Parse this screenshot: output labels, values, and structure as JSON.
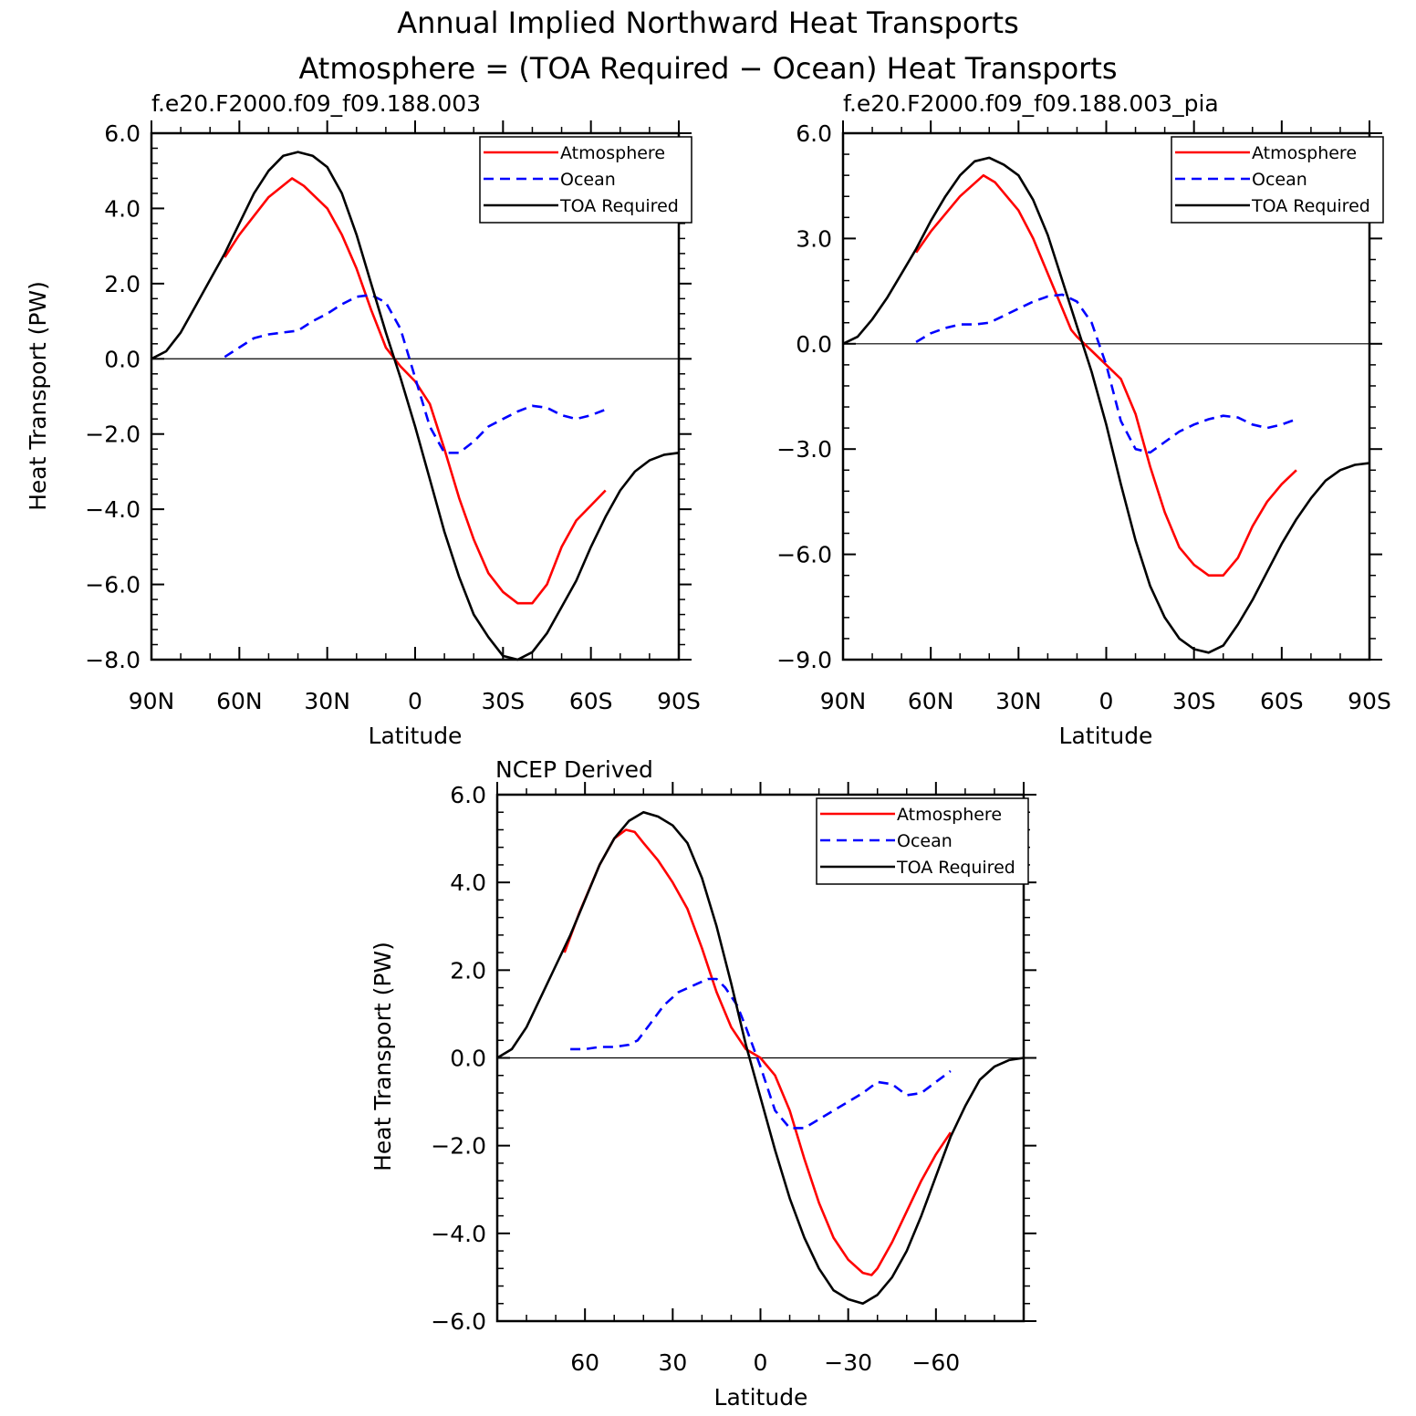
{
  "figure": {
    "title_line1": "Annual Implied Northward Heat Transports",
    "title_line2": "Atmosphere = (TOA Required − Ocean) Heat Transports"
  },
  "colors": {
    "atmosphere": "#ff0000",
    "ocean": "#0000ff",
    "toa": "#000000"
  },
  "chart_data": [
    {
      "type": "line",
      "title": "f.e20.F2000.f09_f09.188.003",
      "xlabel": "Latitude",
      "ylabel": "Heat Transport (PW)",
      "xlim": [
        90,
        -90
      ],
      "ylim": [
        -8,
        6
      ],
      "x_ticks": [
        90,
        60,
        30,
        0,
        -30,
        -60,
        -90
      ],
      "x_tick_labels": [
        "90N",
        "60N",
        "30N",
        "0",
        "30S",
        "60S",
        "90S"
      ],
      "y_ticks": [
        6,
        4,
        2,
        0,
        -2,
        -4,
        -6,
        -8
      ],
      "y_tick_labels": [
        "6.0",
        "4.0",
        "2.0",
        "0.0",
        "−2.0",
        "−4.0",
        "−6.0",
        "−8.0"
      ],
      "legend": "top-right",
      "series": [
        {
          "name": "Atmosphere",
          "color": "#ff0000",
          "dash": "solid",
          "x": [
            65,
            60,
            50,
            42,
            38,
            30,
            25,
            20,
            15,
            12,
            10,
            5,
            0,
            -5,
            -10,
            -15,
            -20,
            -25,
            -30,
            -35,
            -40,
            -45,
            -50,
            -55,
            -60,
            -65
          ],
          "y": [
            2.7,
            3.3,
            4.3,
            4.8,
            4.6,
            4.0,
            3.3,
            2.4,
            1.3,
            0.7,
            0.3,
            -0.2,
            -0.6,
            -1.2,
            -2.4,
            -3.7,
            -4.8,
            -5.7,
            -6.2,
            -6.5,
            -6.5,
            -6.0,
            -5.0,
            -4.3,
            -3.9,
            -3.5
          ]
        },
        {
          "name": "Ocean",
          "color": "#0000ff",
          "dash": "dashed",
          "x": [
            65,
            60,
            55,
            50,
            45,
            40,
            35,
            30,
            25,
            20,
            15,
            10,
            5,
            0,
            -5,
            -10,
            -15,
            -20,
            -25,
            -30,
            -35,
            -40,
            -45,
            -50,
            -55,
            -60,
            -65
          ],
          "y": [
            0.05,
            0.3,
            0.55,
            0.65,
            0.7,
            0.75,
            1.0,
            1.2,
            1.45,
            1.65,
            1.7,
            1.5,
            0.8,
            -0.5,
            -1.8,
            -2.5,
            -2.5,
            -2.2,
            -1.8,
            -1.6,
            -1.4,
            -1.25,
            -1.3,
            -1.5,
            -1.6,
            -1.5,
            -1.35
          ]
        },
        {
          "name": "TOA Required",
          "color": "#000000",
          "dash": "solid",
          "x": [
            90,
            85,
            80,
            75,
            70,
            65,
            60,
            55,
            50,
            45,
            40,
            35,
            30,
            25,
            20,
            15,
            10,
            5,
            0,
            -5,
            -10,
            -15,
            -20,
            -25,
            -30,
            -35,
            -40,
            -45,
            -50,
            -55,
            -60,
            -65,
            -70,
            -75,
            -80,
            -85,
            -90
          ],
          "y": [
            0.0,
            0.2,
            0.7,
            1.4,
            2.1,
            2.8,
            3.6,
            4.4,
            5.0,
            5.4,
            5.5,
            5.4,
            5.1,
            4.4,
            3.3,
            2.0,
            0.7,
            -0.5,
            -1.8,
            -3.2,
            -4.6,
            -5.8,
            -6.8,
            -7.4,
            -7.9,
            -8.0,
            -7.8,
            -7.3,
            -6.6,
            -5.9,
            -5.0,
            -4.2,
            -3.5,
            -3.0,
            -2.7,
            -2.55,
            -2.5
          ]
        }
      ]
    },
    {
      "type": "line",
      "title": "f.e20.F2000.f09_f09.188.003_pia",
      "xlabel": "Latitude",
      "ylabel": "",
      "xlim": [
        90,
        -90
      ],
      "ylim": [
        -9,
        6
      ],
      "x_ticks": [
        90,
        60,
        30,
        0,
        -30,
        -60,
        -90
      ],
      "x_tick_labels": [
        "90N",
        "60N",
        "30N",
        "0",
        "30S",
        "60S",
        "90S"
      ],
      "y_ticks": [
        6,
        3,
        0,
        -3,
        -6,
        -9
      ],
      "y_tick_labels": [
        "6.0",
        "3.0",
        "0.0",
        "−3.0",
        "−6.0",
        "−9.0"
      ],
      "legend": "top-right",
      "series": [
        {
          "name": "Atmosphere",
          "color": "#ff0000",
          "dash": "solid",
          "x": [
            65,
            60,
            50,
            42,
            38,
            30,
            25,
            20,
            15,
            12,
            10,
            5,
            0,
            -5,
            -10,
            -15,
            -20,
            -25,
            -30,
            -35,
            -40,
            -45,
            -50,
            -55,
            -60,
            -65
          ],
          "y": [
            2.6,
            3.2,
            4.2,
            4.8,
            4.6,
            3.8,
            3.0,
            2.0,
            1.0,
            0.4,
            0.2,
            -0.2,
            -0.6,
            -1.0,
            -2.0,
            -3.5,
            -4.8,
            -5.8,
            -6.3,
            -6.6,
            -6.6,
            -6.1,
            -5.2,
            -4.5,
            -4.0,
            -3.6
          ]
        },
        {
          "name": "Ocean",
          "color": "#0000ff",
          "dash": "dashed",
          "x": [
            65,
            60,
            55,
            50,
            45,
            40,
            35,
            30,
            25,
            20,
            15,
            10,
            5,
            0,
            -5,
            -10,
            -15,
            -20,
            -25,
            -30,
            -35,
            -40,
            -45,
            -50,
            -55,
            -60,
            -65
          ],
          "y": [
            0.05,
            0.3,
            0.45,
            0.55,
            0.55,
            0.6,
            0.8,
            1.0,
            1.2,
            1.35,
            1.4,
            1.2,
            0.6,
            -0.6,
            -2.2,
            -3.0,
            -3.1,
            -2.8,
            -2.5,
            -2.3,
            -2.15,
            -2.05,
            -2.1,
            -2.3,
            -2.4,
            -2.3,
            -2.15
          ]
        },
        {
          "name": "TOA Required",
          "color": "#000000",
          "dash": "solid",
          "x": [
            90,
            85,
            80,
            75,
            70,
            65,
            60,
            55,
            50,
            45,
            40,
            35,
            30,
            25,
            20,
            15,
            10,
            5,
            0,
            -5,
            -10,
            -15,
            -20,
            -25,
            -30,
            -35,
            -40,
            -45,
            -50,
            -55,
            -60,
            -65,
            -70,
            -75,
            -80,
            -85,
            -90
          ],
          "y": [
            0.0,
            0.2,
            0.7,
            1.3,
            2.0,
            2.7,
            3.5,
            4.2,
            4.8,
            5.2,
            5.3,
            5.1,
            4.8,
            4.1,
            3.1,
            1.8,
            0.5,
            -0.8,
            -2.3,
            -4.0,
            -5.6,
            -6.9,
            -7.8,
            -8.4,
            -8.7,
            -8.8,
            -8.6,
            -8.0,
            -7.3,
            -6.5,
            -5.7,
            -5.0,
            -4.4,
            -3.9,
            -3.6,
            -3.45,
            -3.4
          ]
        }
      ]
    },
    {
      "type": "line",
      "title": "NCEP Derived",
      "xlabel": "Latitude",
      "ylabel": "Heat Transport (PW)",
      "xlim": [
        90,
        -90
      ],
      "ylim": [
        -6,
        6
      ],
      "x_ticks": [
        60,
        30,
        0,
        -30,
        -60
      ],
      "x_tick_labels": [
        "60",
        "30",
        "0",
        "−30",
        "−60"
      ],
      "y_ticks": [
        6,
        4,
        2,
        0,
        -2,
        -4,
        -6
      ],
      "y_tick_labels": [
        "6.0",
        "4.0",
        "2.0",
        "0.0",
        "−2.0",
        "−4.0",
        "−6.0"
      ],
      "legend": "top-right",
      "series": [
        {
          "name": "Atmosphere",
          "color": "#ff0000",
          "dash": "solid",
          "x": [
            67,
            62,
            55,
            50,
            46,
            43,
            40,
            35,
            30,
            25,
            20,
            15,
            10,
            5,
            0,
            -5,
            -10,
            -15,
            -20,
            -25,
            -30,
            -35,
            -38,
            -40,
            -45,
            -50,
            -55,
            -60,
            -65
          ],
          "y": [
            2.4,
            3.3,
            4.4,
            5.0,
            5.2,
            5.15,
            4.9,
            4.5,
            4.0,
            3.4,
            2.5,
            1.5,
            0.7,
            0.2,
            0.0,
            -0.4,
            -1.2,
            -2.3,
            -3.3,
            -4.1,
            -4.6,
            -4.9,
            -4.95,
            -4.8,
            -4.2,
            -3.5,
            -2.8,
            -2.2,
            -1.7
          ]
        },
        {
          "name": "Ocean",
          "color": "#0000ff",
          "dash": "dashed",
          "x": [
            65,
            60,
            55,
            50,
            45,
            42,
            38,
            33,
            28,
            23,
            18,
            15,
            12,
            8,
            5,
            0,
            -5,
            -10,
            -15,
            -20,
            -25,
            -30,
            -35,
            -40,
            -45,
            -50,
            -55,
            -60,
            -65
          ],
          "y": [
            0.2,
            0.2,
            0.25,
            0.25,
            0.3,
            0.4,
            0.75,
            1.2,
            1.5,
            1.65,
            1.8,
            1.8,
            1.6,
            1.2,
            0.7,
            -0.2,
            -1.2,
            -1.6,
            -1.6,
            -1.4,
            -1.2,
            -1.0,
            -0.8,
            -0.55,
            -0.6,
            -0.85,
            -0.8,
            -0.55,
            -0.3
          ]
        },
        {
          "name": "TOA Required",
          "color": "#000000",
          "dash": "solid",
          "x": [
            90,
            85,
            80,
            75,
            70,
            65,
            60,
            55,
            50,
            45,
            40,
            35,
            30,
            25,
            20,
            15,
            10,
            5,
            0,
            -5,
            -10,
            -15,
            -20,
            -25,
            -30,
            -35,
            -40,
            -45,
            -50,
            -55,
            -60,
            -65,
            -70,
            -75,
            -80,
            -85,
            -90
          ],
          "y": [
            0.0,
            0.2,
            0.7,
            1.4,
            2.1,
            2.8,
            3.6,
            4.4,
            5.0,
            5.4,
            5.6,
            5.5,
            5.3,
            4.9,
            4.1,
            3.0,
            1.7,
            0.3,
            -0.9,
            -2.1,
            -3.2,
            -4.1,
            -4.8,
            -5.3,
            -5.5,
            -5.6,
            -5.4,
            -5.0,
            -4.4,
            -3.6,
            -2.7,
            -1.8,
            -1.1,
            -0.5,
            -0.2,
            -0.05,
            0.0
          ]
        }
      ]
    }
  ]
}
